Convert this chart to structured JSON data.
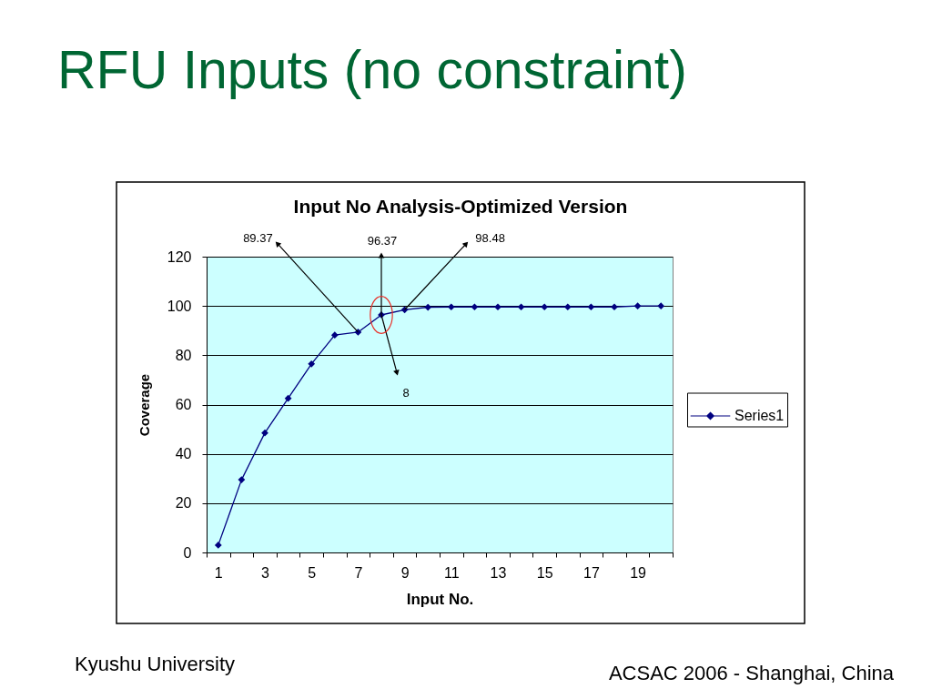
{
  "chart_data": {
    "type": "line",
    "title": "RFU Inputs (no constraint)",
    "subtitle": "Input No Analysis-Optimized Version",
    "xlabel": "Input No.",
    "ylabel": "Coverage",
    "x": [
      1,
      2,
      3,
      4,
      5,
      6,
      7,
      8,
      9,
      10,
      11,
      12,
      13,
      14,
      15,
      16,
      17,
      18,
      19,
      20
    ],
    "series": [
      {
        "name": "Series1",
        "color": "#000080",
        "values": [
          3,
          29.5,
          48.5,
          62.5,
          76.5,
          88.2,
          89.37,
          96.37,
          98.48,
          99.5,
          99.6,
          99.6,
          99.6,
          99.6,
          99.6,
          99.6,
          99.6,
          99.6,
          100,
          100
        ]
      }
    ],
    "xlim": [
      0.5,
      20.5
    ],
    "xticks": [
      {
        "value": 0.5,
        "label": null
      },
      1,
      {
        "value": 1.5,
        "label": null
      },
      {
        "value": 2.5,
        "label": null
      },
      3,
      {
        "value": 3.5,
        "label": null
      },
      {
        "value": 4.5,
        "label": null
      },
      5,
      {
        "value": 5.5,
        "label": null
      },
      {
        "value": 6.5,
        "label": null
      },
      7,
      {
        "value": 7.5,
        "label": null
      },
      {
        "value": 8.5,
        "label": null
      },
      9,
      {
        "value": 9.5,
        "label": null
      },
      {
        "value": 10.5,
        "label": null
      },
      11,
      {
        "value": 11.5,
        "label": null
      },
      {
        "value": 12.5,
        "label": null
      },
      13,
      {
        "value": 13.5,
        "label": null
      },
      {
        "value": 14.5,
        "label": null
      },
      15,
      {
        "value": 15.5,
        "label": null
      },
      {
        "value": 16.5,
        "label": null
      },
      17,
      {
        "value": 17.5,
        "label": null
      },
      {
        "value": 18.5,
        "label": null
      },
      19,
      {
        "value": 19.5,
        "label": null
      },
      {
        "value": 20.5,
        "label": null
      }
    ],
    "ylim": [
      0,
      120
    ],
    "yticks": [
      0,
      20,
      40,
      60,
      80,
      100,
      120
    ],
    "grid": "y",
    "legend": "right",
    "marker": "diamond",
    "line_style": "solid",
    "annotations": [
      {
        "text": "89.37",
        "x": 7,
        "y": 89.37
      },
      {
        "text": "96.37",
        "x": 8,
        "y": 96.37
      },
      {
        "text": "98.48",
        "x": 9,
        "y": 98.48
      },
      {
        "text": "8",
        "x": 8,
        "y": 96.37
      },
      "Kyushu University",
      "ACSAC 2006 - Shanghai, China"
    ]
  }
}
